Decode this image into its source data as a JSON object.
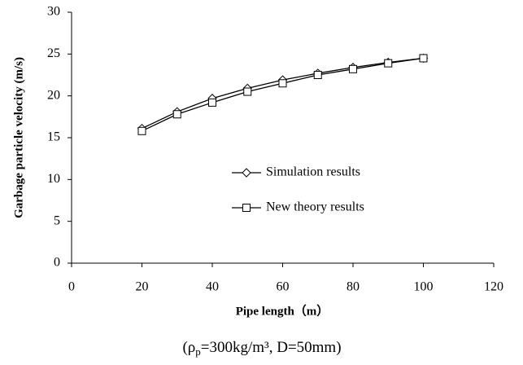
{
  "chart_data": {
    "type": "line",
    "x_label": "Pipe length（m）",
    "y_label": "Garbage particle velocity (m/s)",
    "caption": [
      "(ρ",
      "p",
      "=300kg/m³, D=50mm)"
    ],
    "x": [
      20,
      30,
      40,
      50,
      60,
      70,
      80,
      90,
      100
    ],
    "series": [
      {
        "name": "Simulation results",
        "color": "#000000",
        "marker": "diamond",
        "values": [
          16.1,
          18.1,
          19.7,
          20.9,
          21.9,
          22.7,
          23.4,
          24.0,
          24.5
        ]
      },
      {
        "name": "New theory results",
        "color": "#000000",
        "marker": "square",
        "values": [
          15.8,
          17.8,
          19.2,
          20.5,
          21.5,
          22.5,
          23.2,
          23.9,
          24.5
        ]
      }
    ],
    "xlim": [
      0,
      120
    ],
    "xticks": [
      0,
      20,
      40,
      60,
      80,
      100,
      120
    ],
    "ylim": [
      0,
      30
    ],
    "yticks": [
      0,
      5,
      10,
      15,
      20,
      25,
      30
    ],
    "grid": false,
    "legend_position": "center"
  }
}
